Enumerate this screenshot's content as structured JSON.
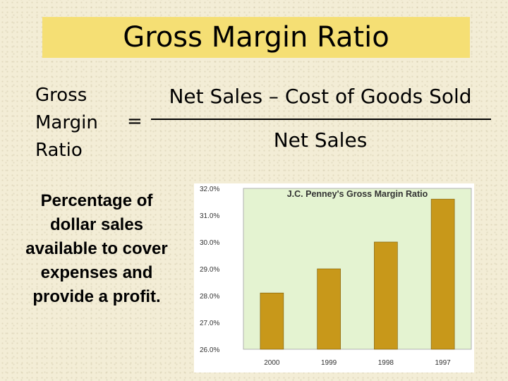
{
  "slide": {
    "title": "Gross Margin Ratio",
    "formula": {
      "label_lines": [
        "Gross",
        "Margin",
        "Ratio"
      ],
      "equals": "=",
      "numerator": "Net Sales – Cost of Goods Sold",
      "denominator": "Net Sales"
    },
    "description": "Percentage of dollar sales available to cover expenses and provide a profit."
  },
  "colors": {
    "title_bg": "#f5df74",
    "plot_bg": "#e4f3d1",
    "bar": "#c8981a",
    "chart_bg": "#ffffff"
  },
  "chart_data": {
    "type": "bar",
    "title": "J.C. Penney's Gross Margin Ratio",
    "categories": [
      "2000",
      "1999",
      "1998",
      "1997"
    ],
    "values": [
      28.1,
      29.0,
      30.0,
      31.6
    ],
    "ylim": [
      26.0,
      32.0
    ],
    "yticks": [
      "26.0%",
      "27.0%",
      "28.0%",
      "29.0%",
      "30.0%",
      "31.0%",
      "32.0%"
    ],
    "xlabel": "",
    "ylabel": "",
    "grid": false,
    "legend": "none"
  }
}
